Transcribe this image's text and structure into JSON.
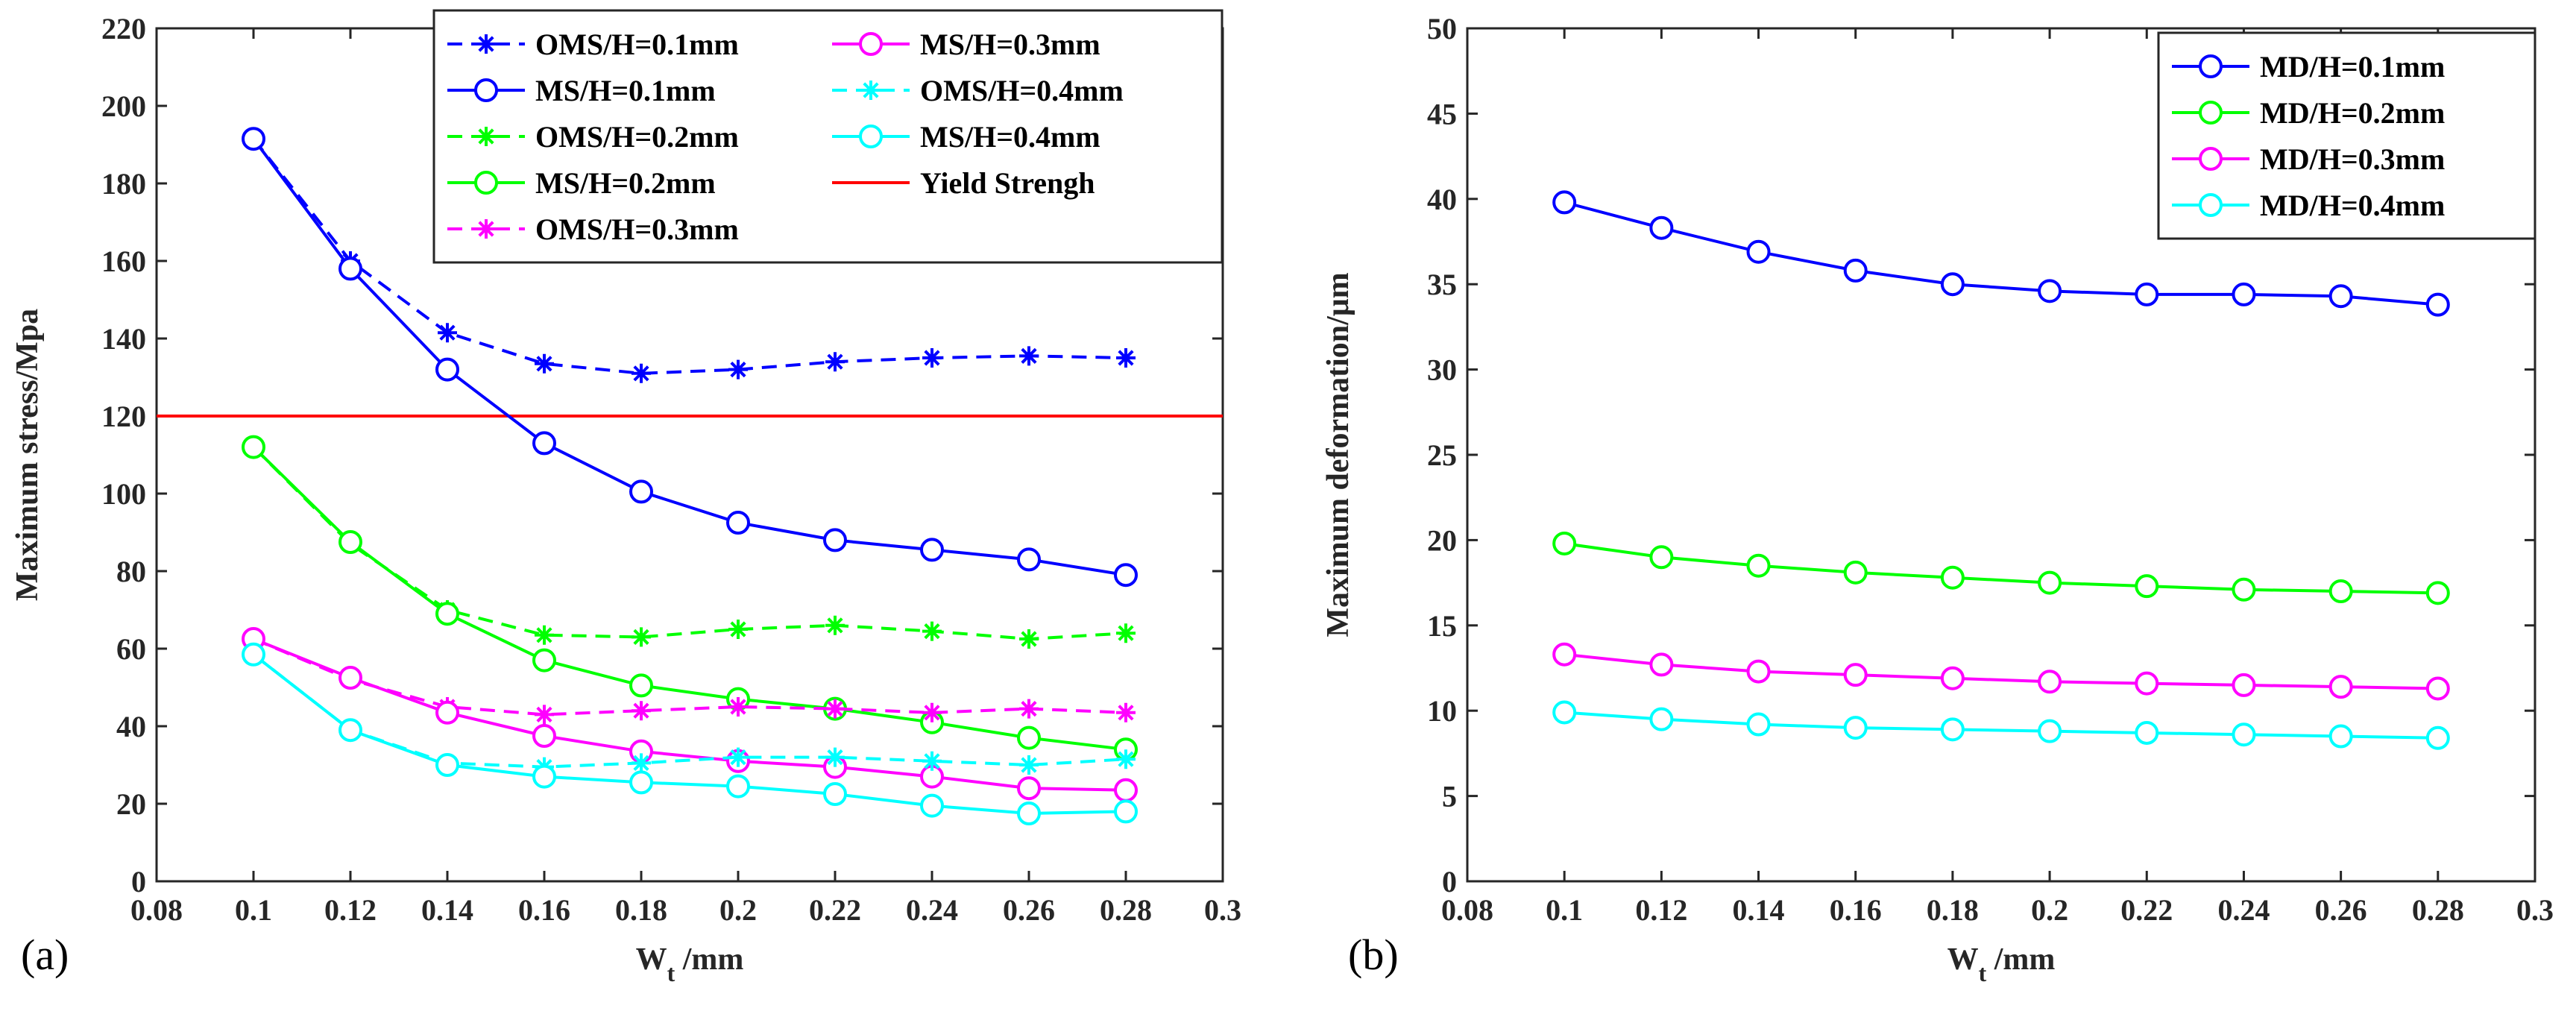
{
  "chart_data": [
    {
      "panel_label": "(a)",
      "type": "line",
      "xlabel_main": "W",
      "xlabel_sub": "t",
      "xlabel_unit": " /mm",
      "ylabel": "Maximum stress/Mpa",
      "xlim": [
        0.08,
        0.3
      ],
      "ylim": [
        0,
        220
      ],
      "xticks": [
        "0.08",
        "0.1",
        "0.12",
        "0.14",
        "0.16",
        "0.18",
        "0.2",
        "0.22",
        "0.24",
        "0.26",
        "0.28",
        "0.3"
      ],
      "yticks": [
        "0",
        "20",
        "40",
        "60",
        "80",
        "100",
        "120",
        "140",
        "160",
        "180",
        "200",
        "220"
      ],
      "x": [
        0.1,
        0.12,
        0.14,
        0.16,
        0.18,
        0.2,
        0.22,
        0.24,
        0.26,
        0.28
      ],
      "series": [
        {
          "name": "OMS/H=0.1mm",
          "color": "#0000ff",
          "dash": true,
          "marker": "star",
          "values": [
            191.5,
            160,
            141.5,
            133.5,
            131,
            132,
            134,
            135,
            135.5,
            135
          ]
        },
        {
          "name": "MS/H=0.1mm",
          "color": "#0000ff",
          "dash": false,
          "marker": "circle",
          "values": [
            191.5,
            158,
            132,
            113,
            100.5,
            92.5,
            88,
            85.5,
            83,
            79
          ]
        },
        {
          "name": "OMS/H=0.2mm",
          "color": "#00ff00",
          "dash": true,
          "marker": "star",
          "values": [
            112,
            87,
            70,
            63.5,
            63,
            65,
            66,
            64.5,
            62.5,
            64
          ]
        },
        {
          "name": "MS/H=0.2mm",
          "color": "#00ff00",
          "dash": false,
          "marker": "circle",
          "values": [
            112,
            87.5,
            69,
            57,
            50.5,
            47,
            44.5,
            41,
            37,
            34
          ]
        },
        {
          "name": "OMS/H=0.3mm",
          "color": "#ff00ff",
          "dash": true,
          "marker": "star",
          "values": [
            62.5,
            52,
            45,
            43,
            44,
            45,
            44.5,
            43.5,
            44.5,
            43.5
          ]
        },
        {
          "name": "MS/H=0.3mm",
          "color": "#ff00ff",
          "dash": false,
          "marker": "circle",
          "values": [
            62.5,
            52.5,
            43.5,
            37.5,
            33.5,
            31,
            29.5,
            27,
            24,
            23.5
          ]
        },
        {
          "name": "OMS/H=0.4mm",
          "color": "#00ffff",
          "dash": true,
          "marker": "star",
          "values": [
            58.5,
            39,
            30.5,
            29.5,
            30.5,
            32,
            32,
            31,
            30,
            31.5
          ]
        },
        {
          "name": "MS/H=0.4mm",
          "color": "#00ffff",
          "dash": false,
          "marker": "circle",
          "values": [
            58.5,
            39,
            30,
            27,
            25.5,
            24.5,
            22.5,
            19.5,
            17.5,
            18
          ]
        }
      ],
      "hlines": [
        {
          "name": "Yield Strengh",
          "color": "#ff0000",
          "y": 120
        }
      ],
      "legend_position": "top-right",
      "legend_columns": [
        [
          "OMS/H=0.1mm",
          "MS/H=0.1mm",
          "OMS/H=0.2mm",
          "MS/H=0.2mm",
          "OMS/H=0.3mm"
        ],
        [
          "MS/H=0.3mm",
          "OMS/H=0.4mm",
          "MS/H=0.4mm",
          "Yield Strengh"
        ]
      ]
    },
    {
      "panel_label": "(b)",
      "type": "line",
      "xlabel_main": "W",
      "xlabel_sub": "t",
      "xlabel_unit": " /mm",
      "ylabel": "Maximum deformation/μm",
      "xlim": [
        0.08,
        0.3
      ],
      "ylim": [
        0,
        50
      ],
      "xticks": [
        "0.08",
        "0.1",
        "0.12",
        "0.14",
        "0.16",
        "0.18",
        "0.2",
        "0.22",
        "0.24",
        "0.26",
        "0.28",
        "0.3"
      ],
      "yticks": [
        "0",
        "5",
        "10",
        "15",
        "20",
        "25",
        "30",
        "35",
        "40",
        "45",
        "50"
      ],
      "x": [
        0.1,
        0.12,
        0.14,
        0.16,
        0.18,
        0.2,
        0.22,
        0.24,
        0.26,
        0.28
      ],
      "series": [
        {
          "name": "MD/H=0.1mm",
          "color": "#0000ff",
          "dash": false,
          "marker": "circle",
          "values": [
            39.8,
            38.3,
            36.9,
            35.8,
            35,
            34.6,
            34.4,
            34.4,
            34.3,
            33.8
          ]
        },
        {
          "name": "MD/H=0.2mm",
          "color": "#00ff00",
          "dash": false,
          "marker": "circle",
          "values": [
            19.8,
            19,
            18.5,
            18.1,
            17.8,
            17.5,
            17.3,
            17.1,
            17,
            16.9
          ]
        },
        {
          "name": "MD/H=0.3mm",
          "color": "#ff00ff",
          "dash": false,
          "marker": "circle",
          "values": [
            13.3,
            12.7,
            12.3,
            12.1,
            11.9,
            11.7,
            11.6,
            11.5,
            11.4,
            11.3
          ]
        },
        {
          "name": "MD/H=0.4mm",
          "color": "#00ffff",
          "dash": false,
          "marker": "circle",
          "values": [
            9.9,
            9.5,
            9.2,
            9,
            8.9,
            8.8,
            8.7,
            8.6,
            8.5,
            8.4
          ]
        }
      ],
      "hlines": [],
      "legend_position": "top-right",
      "legend_columns": [
        [
          "MD/H=0.1mm",
          "MD/H=0.2mm",
          "MD/H=0.3mm",
          "MD/H=0.4mm"
        ]
      ]
    }
  ]
}
